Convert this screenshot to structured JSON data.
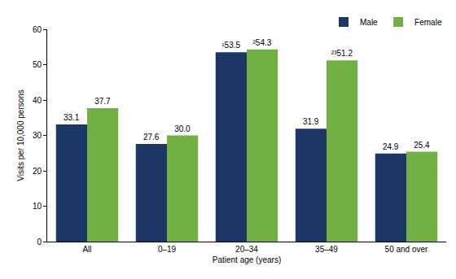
{
  "chart_data": {
    "type": "bar",
    "categories": [
      "All",
      "0–19",
      "20–34",
      "35–49",
      "50 and over"
    ],
    "series": [
      {
        "name": "Male",
        "color": "#1c3766",
        "values": [
          33.1,
          27.6,
          53.5,
          31.9,
          24.9
        ],
        "value_labels": [
          "33.1",
          "27.6",
          "¹53.5",
          "31.9",
          "24.9"
        ]
      },
      {
        "name": "Female",
        "color": "#72b043",
        "values": [
          37.7,
          30.0,
          54.3,
          51.2,
          25.4
        ],
        "value_labels": [
          "37.7",
          "30.0",
          "²54.3",
          "²³51.2",
          "25.4"
        ]
      }
    ],
    "x_label": "Patient age (years)",
    "y_label": "Visits per 10,000 persons",
    "ylim": [
      0,
      60
    ],
    "yticks": [
      0,
      10,
      20,
      30,
      40,
      50,
      60
    ],
    "grid": false,
    "legend": "top right",
    "data_labels": true
  }
}
